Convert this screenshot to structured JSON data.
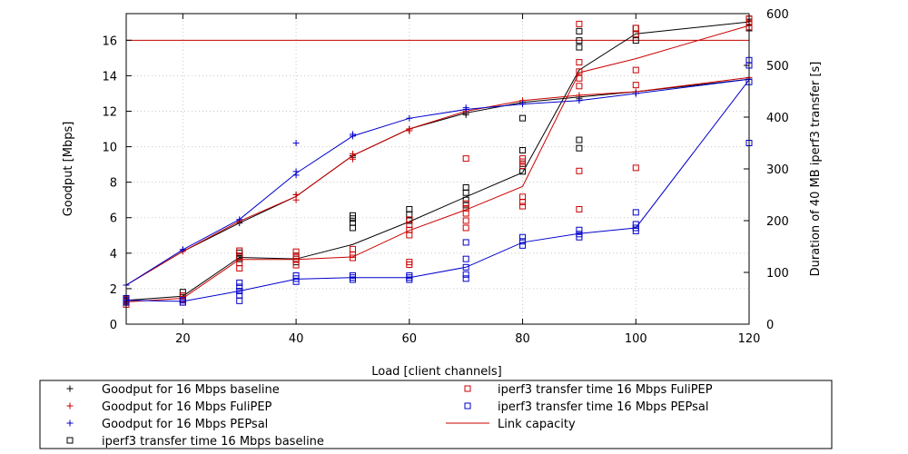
{
  "chart_data": {
    "type": "line",
    "xlabel": "Load [client channels]",
    "ylabel": "Goodput [Mbps]",
    "y2label": "Duration of 40 MB iperf3 transfer [s]",
    "xlim": [
      10,
      120
    ],
    "ylim": [
      0,
      17.5
    ],
    "y2lim": [
      0,
      600
    ],
    "xticks": [
      20,
      40,
      60,
      80,
      100,
      120
    ],
    "yticks": [
      0,
      2,
      4,
      6,
      8,
      10,
      12,
      14,
      16
    ],
    "y2ticks": [
      0,
      100,
      200,
      300,
      400,
      500,
      600
    ],
    "grid": true,
    "link_capacity": 16,
    "goodput_series": [
      {
        "name": "Goodput for 16 Mbps baseline",
        "color": "#000000",
        "mean": [
          [
            10,
            2.2
          ],
          [
            20,
            4.1
          ],
          [
            30,
            5.7
          ],
          [
            40,
            7.2
          ],
          [
            50,
            9.5
          ],
          [
            60,
            11.0
          ],
          [
            70,
            11.9
          ],
          [
            80,
            12.5
          ],
          [
            90,
            12.8
          ],
          [
            100,
            13.1
          ],
          [
            120,
            13.8
          ]
        ],
        "samples": [
          [
            10,
            2.2
          ],
          [
            20,
            4.2
          ],
          [
            30,
            5.7
          ],
          [
            40,
            7.3
          ],
          [
            50,
            9.4
          ],
          [
            50,
            9.5
          ],
          [
            60,
            10.9
          ],
          [
            60,
            11.0
          ],
          [
            70,
            11.8
          ],
          [
            70,
            11.9
          ],
          [
            80,
            12.5
          ],
          [
            90,
            12.7
          ],
          [
            90,
            12.8
          ],
          [
            100,
            13.0
          ],
          [
            120,
            13.8
          ]
        ]
      },
      {
        "name": "Goodput for 16 Mbps FuliPEP",
        "color": "#cc0000",
        "mean": [
          [
            10,
            2.2
          ],
          [
            20,
            4.1
          ],
          [
            30,
            5.8
          ],
          [
            40,
            7.2
          ],
          [
            50,
            9.5
          ],
          [
            60,
            11.0
          ],
          [
            70,
            12.0
          ],
          [
            80,
            12.6
          ],
          [
            90,
            12.9
          ],
          [
            100,
            13.1
          ],
          [
            120,
            13.9
          ]
        ],
        "samples": [
          [
            10,
            2.2
          ],
          [
            20,
            4.1
          ],
          [
            30,
            5.8
          ],
          [
            40,
            7.0
          ],
          [
            40,
            7.3
          ],
          [
            50,
            9.3
          ],
          [
            50,
            9.6
          ],
          [
            60,
            10.9
          ],
          [
            60,
            11.0
          ],
          [
            70,
            12.0
          ],
          [
            80,
            12.6
          ],
          [
            90,
            12.9
          ],
          [
            100,
            13.1
          ],
          [
            120,
            13.9
          ]
        ]
      },
      {
        "name": "Goodput for 16 Mbps PEPsal",
        "color": "#0000cc",
        "mean": [
          [
            10,
            2.2
          ],
          [
            20,
            4.2
          ],
          [
            30,
            5.9
          ],
          [
            40,
            8.5
          ],
          [
            50,
            10.6
          ],
          [
            60,
            11.6
          ],
          [
            70,
            12.1
          ],
          [
            80,
            12.4
          ],
          [
            90,
            12.6
          ],
          [
            100,
            13.0
          ],
          [
            120,
            13.8
          ]
        ],
        "samples": [
          [
            10,
            2.2
          ],
          [
            20,
            4.2
          ],
          [
            30,
            5.9
          ],
          [
            40,
            8.4
          ],
          [
            40,
            8.6
          ],
          [
            40,
            10.2
          ],
          [
            50,
            10.6
          ],
          [
            50,
            10.7
          ],
          [
            60,
            11.6
          ],
          [
            70,
            12.1
          ],
          [
            70,
            12.2
          ],
          [
            80,
            12.4
          ],
          [
            90,
            12.6
          ],
          [
            100,
            13.0
          ],
          [
            120,
            13.8
          ]
        ]
      }
    ],
    "duration_series": [
      {
        "name": "iperf3 transfer time 16 Mbps baseline",
        "color": "#000000",
        "mean": [
          [
            10,
            46
          ],
          [
            20,
            54
          ],
          [
            30,
            129
          ],
          [
            40,
            126
          ],
          [
            50,
            154
          ],
          [
            60,
            198
          ],
          [
            70,
            246
          ],
          [
            80,
            293
          ],
          [
            90,
            491
          ],
          [
            100,
            561
          ],
          [
            120,
            584
          ]
        ],
        "samples": [
          [
            10,
            42
          ],
          [
            10,
            46
          ],
          [
            10,
            50
          ],
          [
            20,
            48
          ],
          [
            20,
            55
          ],
          [
            20,
            62
          ],
          [
            30,
            126
          ],
          [
            30,
            132
          ],
          [
            30,
            138
          ],
          [
            40,
            120
          ],
          [
            40,
            126
          ],
          [
            40,
            132
          ],
          [
            50,
            186
          ],
          [
            50,
            196
          ],
          [
            50,
            204
          ],
          [
            50,
            210
          ],
          [
            60,
            200
          ],
          [
            60,
            212
          ],
          [
            60,
            222
          ],
          [
            70,
            230
          ],
          [
            70,
            240
          ],
          [
            70,
            254
          ],
          [
            70,
            264
          ],
          [
            80,
            295
          ],
          [
            80,
            310
          ],
          [
            80,
            336
          ],
          [
            80,
            398
          ],
          [
            90,
            340
          ],
          [
            90,
            356
          ],
          [
            90,
            535
          ],
          [
            90,
            548
          ],
          [
            90,
            566
          ],
          [
            100,
            548
          ],
          [
            100,
            560
          ],
          [
            100,
            572
          ],
          [
            120,
            572
          ],
          [
            120,
            584
          ],
          [
            120,
            590
          ]
        ]
      },
      {
        "name": "iperf3 transfer time 16 Mbps FuliPEP",
        "color": "#cc0000",
        "mean": [
          [
            10,
            43
          ],
          [
            20,
            50
          ],
          [
            30,
            125
          ],
          [
            40,
            125
          ],
          [
            50,
            130
          ],
          [
            60,
            181
          ],
          [
            70,
            221
          ],
          [
            80,
            266
          ],
          [
            90,
            486
          ],
          [
            100,
            513
          ],
          [
            120,
            577
          ]
        ],
        "samples": [
          [
            10,
            38
          ],
          [
            10,
            44
          ],
          [
            10,
            48
          ],
          [
            20,
            42
          ],
          [
            20,
            48
          ],
          [
            20,
            55
          ],
          [
            30,
            108
          ],
          [
            30,
            118
          ],
          [
            30,
            130
          ],
          [
            30,
            142
          ],
          [
            40,
            114
          ],
          [
            40,
            126
          ],
          [
            40,
            132
          ],
          [
            40,
            140
          ],
          [
            50,
            128
          ],
          [
            50,
            134
          ],
          [
            50,
            145
          ],
          [
            60,
            115
          ],
          [
            60,
            120
          ],
          [
            60,
            172
          ],
          [
            60,
            182
          ],
          [
            60,
            192
          ],
          [
            60,
            202
          ],
          [
            70,
            186
          ],
          [
            70,
            200
          ],
          [
            70,
            214
          ],
          [
            70,
            224
          ],
          [
            70,
            233
          ],
          [
            70,
            320
          ],
          [
            80,
            228
          ],
          [
            80,
            236
          ],
          [
            80,
            246
          ],
          [
            80,
            306
          ],
          [
            80,
            314
          ],
          [
            80,
            320
          ],
          [
            90,
            222
          ],
          [
            90,
            296
          ],
          [
            90,
            460
          ],
          [
            90,
            475
          ],
          [
            90,
            488
          ],
          [
            90,
            506
          ],
          [
            90,
            580
          ],
          [
            100,
            302
          ],
          [
            100,
            462
          ],
          [
            100,
            491
          ],
          [
            100,
            560
          ],
          [
            100,
            572
          ],
          [
            120,
            574
          ],
          [
            120,
            582
          ],
          [
            120,
            590
          ]
        ]
      },
      {
        "name": "iperf3 transfer time 16 Mbps PEPsal",
        "color": "#0000cc",
        "mean": [
          [
            10,
            46
          ],
          [
            20,
            44
          ],
          [
            30,
            64
          ],
          [
            40,
            87
          ],
          [
            50,
            90
          ],
          [
            60,
            90
          ],
          [
            70,
            110
          ],
          [
            80,
            158
          ],
          [
            90,
            175
          ],
          [
            100,
            186
          ],
          [
            120,
            472
          ]
        ],
        "samples": [
          [
            10,
            42
          ],
          [
            10,
            46
          ],
          [
            10,
            50
          ],
          [
            20,
            42
          ],
          [
            20,
            46
          ],
          [
            30,
            45
          ],
          [
            30,
            56
          ],
          [
            30,
            64
          ],
          [
            30,
            72
          ],
          [
            30,
            80
          ],
          [
            40,
            82
          ],
          [
            40,
            88
          ],
          [
            40,
            94
          ],
          [
            50,
            86
          ],
          [
            50,
            90
          ],
          [
            50,
            94
          ],
          [
            60,
            86
          ],
          [
            60,
            90
          ],
          [
            60,
            94
          ],
          [
            70,
            88
          ],
          [
            70,
            96
          ],
          [
            70,
            110
          ],
          [
            70,
            126
          ],
          [
            70,
            158
          ],
          [
            80,
            152
          ],
          [
            80,
            160
          ],
          [
            80,
            168
          ],
          [
            90,
            168
          ],
          [
            90,
            174
          ],
          [
            90,
            182
          ],
          [
            100,
            180
          ],
          [
            100,
            186
          ],
          [
            100,
            193
          ],
          [
            100,
            216
          ],
          [
            120,
            350
          ],
          [
            120,
            468
          ],
          [
            120,
            500
          ],
          [
            120,
            510
          ]
        ]
      }
    ],
    "reference_lines": [
      {
        "name": "Link capacity",
        "color": "#cc0000",
        "value": 16
      }
    ],
    "legend_position": "bottom",
    "legend_order": [
      {
        "name": "Goodput for 16 Mbps baseline",
        "marker": "plus",
        "color": "#000000"
      },
      {
        "name": "Goodput for 16 Mbps FuliPEP",
        "marker": "plus",
        "color": "#cc0000"
      },
      {
        "name": "Goodput for 16 Mbps PEPsal",
        "marker": "plus",
        "color": "#0000cc"
      },
      {
        "name": "iperf3 transfer time 16 Mbps baseline",
        "marker": "square",
        "color": "#000000"
      },
      {
        "name": "iperf3 transfer time 16 Mbps FuliPEP",
        "marker": "square",
        "color": "#cc0000"
      },
      {
        "name": "iperf3 transfer time 16 Mbps PEPsal",
        "marker": "square",
        "color": "#0000cc"
      },
      {
        "name": "Link capacity",
        "marker": "line",
        "color": "#cc0000"
      }
    ]
  }
}
